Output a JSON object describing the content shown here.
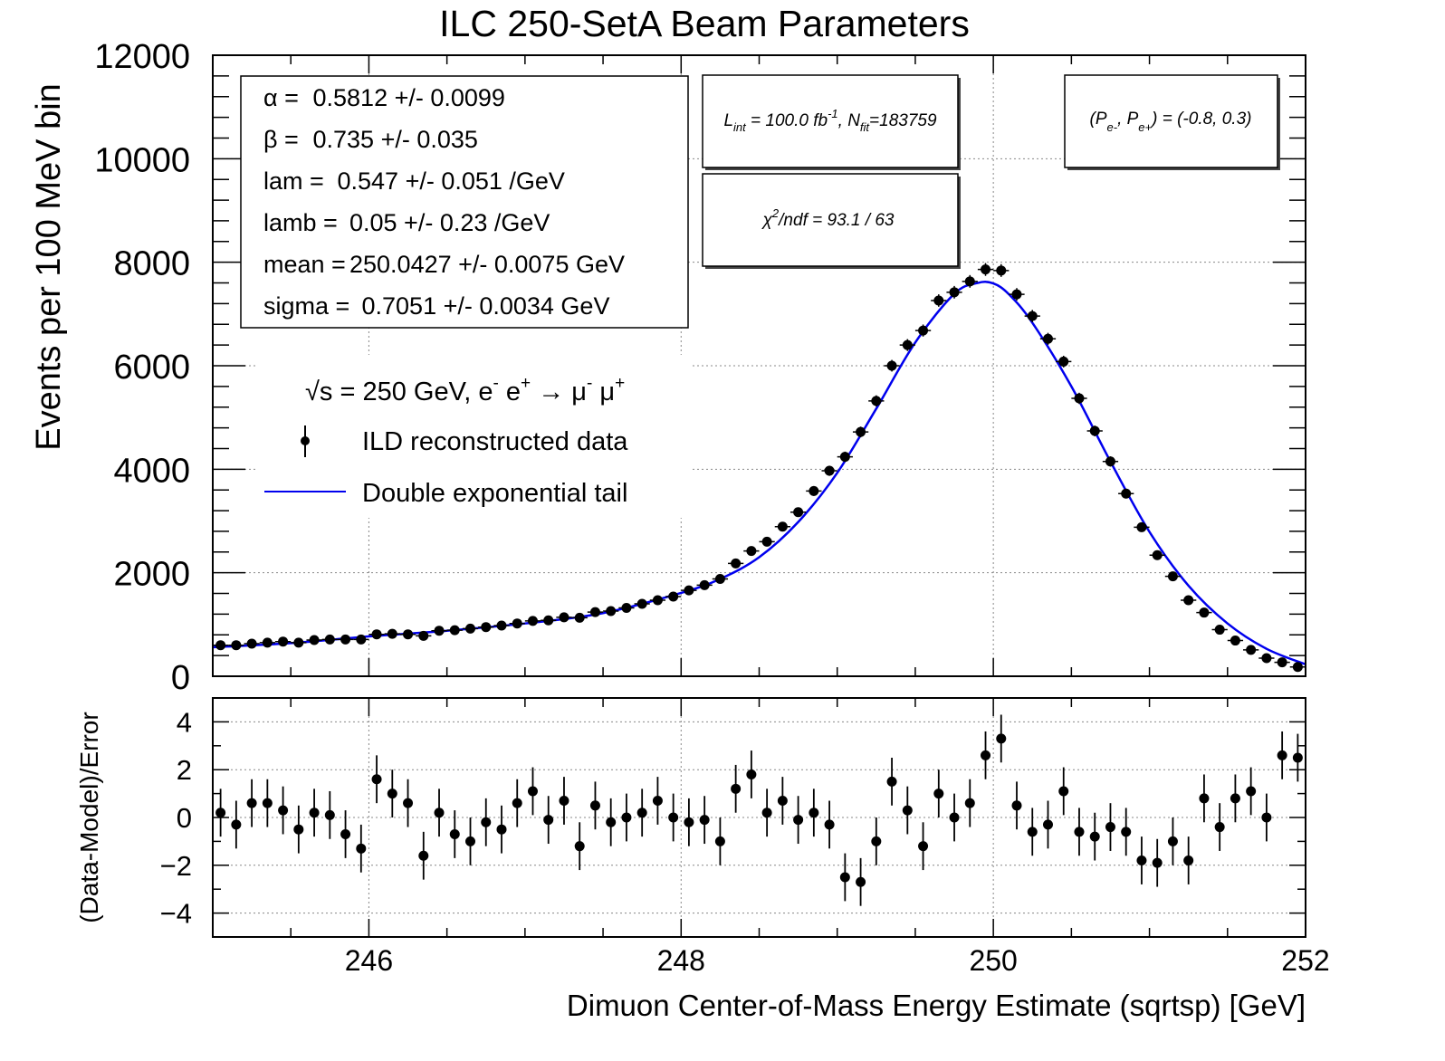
{
  "chart_data": {
    "type": "scatter",
    "title": "ILC 250-SetA Beam Parameters",
    "xlabel": "Dimuon Center-of-Mass Energy Estimate (sqrtsp) [GeV]",
    "ylabel": "Events per 100 MeV bin",
    "ratio_ylabel": "(Data-Model)/Error",
    "xlim": [
      245,
      252
    ],
    "ylim": [
      0,
      12000
    ],
    "ratio_ylim": [
      -5,
      5
    ],
    "x_ticks": [
      246,
      248,
      250,
      252
    ],
    "y_ticks": [
      0,
      2000,
      4000,
      6000,
      8000,
      10000,
      12000
    ],
    "ratio_y_ticks": [
      4,
      2,
      0,
      -2,
      -4
    ],
    "ratio_y_tick_labels": [
      "4",
      "2",
      "0",
      "−2",
      "−4"
    ],
    "grid": true,
    "fit_params": [
      {
        "name": "α =",
        "value": "0.5812 +/- 0.0099"
      },
      {
        "name": "β =",
        "value": "0.735 +/- 0.035"
      },
      {
        "name": "lam =",
        "value": "0.547 +/- 0.051 /GeV"
      },
      {
        "name": "lamb =",
        "value": "0.05 +/- 0.23 /GeV"
      },
      {
        "name": "mean =",
        "value": "250.0427 +/- 0.0075 GeV"
      },
      {
        "name": "sigma =",
        "value": "0.7051 +/- 0.0034 GeV"
      }
    ],
    "lumi_box": {
      "L": "L",
      "int": "int",
      "eq1": " = 100.0 fb",
      "exp": "-1",
      "comma": ", N",
      "fit": "fit",
      "eq2": "=183759"
    },
    "pol_box": {
      "open": "(P",
      "sub1": "e-",
      "mid": ", P",
      "sub2": "e+",
      "close": ") = (-0.8, 0.3)"
    },
    "chi2_box": {
      "chi": "χ",
      "sup": "2",
      "rest": "/ndf =   93.1 /  63"
    },
    "legend": {
      "sqrt_symbol": "√",
      "process": "s = 250 GeV, e",
      "proc_e_sup": "-",
      "proc_ep": " e",
      "proc_ep_sup": "+",
      "proc_arrow": " → μ",
      "proc_mu_sup": "-",
      "proc_mup": " μ",
      "proc_mup_sup": "+",
      "data_label": "ILD reconstructed data",
      "model_label": "Double exponential tail"
    },
    "series": [
      {
        "name": "ILD reconstructed data",
        "x": [
          245.05,
          245.15,
          245.25,
          245.35,
          245.45,
          245.55,
          245.65,
          245.75,
          245.85,
          245.95,
          246.05,
          246.15,
          246.25,
          246.35,
          246.45,
          246.55,
          246.65,
          246.75,
          246.85,
          246.95,
          247.05,
          247.15,
          247.25,
          247.35,
          247.45,
          247.55,
          247.65,
          247.75,
          247.85,
          247.95,
          248.05,
          248.15,
          248.25,
          248.35,
          248.45,
          248.55,
          248.65,
          248.75,
          248.85,
          248.95,
          249.05,
          249.15,
          249.25,
          249.35,
          249.45,
          249.55,
          249.65,
          249.75,
          249.85,
          249.95,
          250.05,
          250.15,
          250.25,
          250.35,
          250.45,
          250.55,
          250.65,
          250.75,
          250.85,
          250.95,
          251.05,
          251.15,
          251.25,
          251.35,
          251.45,
          251.55,
          251.65,
          251.75,
          251.85,
          251.95
        ],
        "values": [
          600,
          600,
          630,
          650,
          670,
          650,
          700,
          710,
          710,
          710,
          810,
          820,
          810,
          780,
          880,
          890,
          920,
          950,
          980,
          1020,
          1070,
          1080,
          1140,
          1130,
          1240,
          1260,
          1320,
          1400,
          1470,
          1540,
          1660,
          1760,
          1880,
          2180,
          2420,
          2600,
          2890,
          3170,
          3580,
          3970,
          4240,
          4720,
          5320,
          6000,
          6400,
          6680,
          7260,
          7420,
          7630,
          7860,
          7840,
          7380,
          6960,
          6520,
          6080,
          5370,
          4740,
          4150,
          3530,
          2880,
          2340,
          1930,
          1470,
          1230,
          900,
          690,
          510,
          350,
          270,
          180
        ],
        "ratio": [
          0.2,
          -0.3,
          0.6,
          0.6,
          0.3,
          -0.5,
          0.2,
          0.1,
          -0.7,
          -1.3,
          1.6,
          1.0,
          0.6,
          -1.6,
          0.2,
          -0.7,
          -1.0,
          -0.2,
          -0.5,
          0.6,
          1.1,
          -0.1,
          0.7,
          -1.2,
          0.5,
          -0.2,
          0.0,
          0.2,
          0.7,
          0.0,
          -0.2,
          -0.1,
          -1.0,
          1.2,
          1.8,
          0.2,
          0.7,
          -0.1,
          0.2,
          -0.3,
          -2.5,
          -2.7,
          -1.0,
          1.5,
          0.3,
          -1.2,
          1.0,
          0.0,
          0.6,
          2.6,
          3.3,
          0.5,
          -0.6,
          -0.3,
          1.1,
          -0.6,
          -0.8,
          -0.4,
          -0.6,
          -1.8,
          -1.9,
          -1.0,
          -1.8,
          0.8,
          -0.4,
          0.8,
          1.1,
          0.0,
          2.6,
          2.5
        ]
      },
      {
        "name": "Double exponential tail",
        "x": [
          245.0,
          245.5,
          246.0,
          246.5,
          247.0,
          247.5,
          248.0,
          248.25,
          248.5,
          248.75,
          249.0,
          249.25,
          249.5,
          249.75,
          249.9,
          250.0,
          250.1,
          250.25,
          250.5,
          250.75,
          251.0,
          251.25,
          251.5,
          251.75,
          252.0
        ],
        "values": [
          560,
          640,
          770,
          880,
          1020,
          1220,
          1610,
          1880,
          2300,
          2980,
          3930,
          5170,
          6450,
          7390,
          7600,
          7590,
          7380,
          6830,
          5600,
          4150,
          2790,
          1750,
          1020,
          530,
          230
        ]
      }
    ]
  }
}
